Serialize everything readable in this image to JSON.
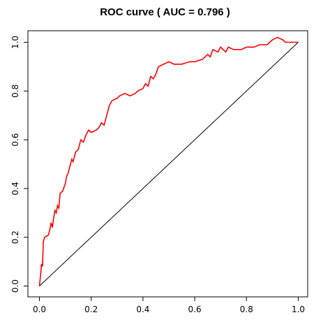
{
  "chart_data": {
    "type": "line",
    "title": "ROC curve ( AUC =  0.796 )",
    "xlabel": "",
    "ylabel": "",
    "xlim": [
      0.0,
      1.0
    ],
    "ylim": [
      0.0,
      1.0
    ],
    "grid": false,
    "legend": "none",
    "x_ticks": [
      "0.0",
      "0.2",
      "0.4",
      "0.6",
      "0.8",
      "1.0"
    ],
    "y_ticks": [
      "0.0",
      "0.2",
      "0.4",
      "0.6",
      "0.8",
      "1.0"
    ],
    "series": [
      {
        "color": "#ff0000",
        "points": [
          [
            0.0,
            0.0
          ],
          [
            0.005,
            0.05
          ],
          [
            0.008,
            0.09
          ],
          [
            0.012,
            0.08
          ],
          [
            0.015,
            0.18
          ],
          [
            0.02,
            0.2
          ],
          [
            0.035,
            0.21
          ],
          [
            0.04,
            0.23
          ],
          [
            0.045,
            0.26
          ],
          [
            0.05,
            0.24
          ],
          [
            0.055,
            0.28
          ],
          [
            0.06,
            0.31
          ],
          [
            0.065,
            0.3
          ],
          [
            0.07,
            0.33
          ],
          [
            0.075,
            0.32
          ],
          [
            0.08,
            0.38
          ],
          [
            0.09,
            0.39
          ],
          [
            0.1,
            0.42
          ],
          [
            0.105,
            0.45
          ],
          [
            0.11,
            0.46
          ],
          [
            0.12,
            0.5
          ],
          [
            0.125,
            0.52
          ],
          [
            0.13,
            0.51
          ],
          [
            0.14,
            0.55
          ],
          [
            0.15,
            0.56
          ],
          [
            0.16,
            0.6
          ],
          [
            0.17,
            0.59
          ],
          [
            0.18,
            0.62
          ],
          [
            0.19,
            0.64
          ],
          [
            0.2,
            0.63
          ],
          [
            0.22,
            0.64
          ],
          [
            0.23,
            0.65
          ],
          [
            0.24,
            0.67
          ],
          [
            0.25,
            0.66
          ],
          [
            0.26,
            0.7
          ],
          [
            0.27,
            0.74
          ],
          [
            0.28,
            0.76
          ],
          [
            0.3,
            0.77
          ],
          [
            0.31,
            0.78
          ],
          [
            0.33,
            0.79
          ],
          [
            0.35,
            0.78
          ],
          [
            0.37,
            0.79
          ],
          [
            0.38,
            0.8
          ],
          [
            0.4,
            0.81
          ],
          [
            0.41,
            0.83
          ],
          [
            0.42,
            0.82
          ],
          [
            0.43,
            0.86
          ],
          [
            0.44,
            0.85
          ],
          [
            0.45,
            0.87
          ],
          [
            0.46,
            0.9
          ],
          [
            0.48,
            0.91
          ],
          [
            0.5,
            0.92
          ],
          [
            0.52,
            0.91
          ],
          [
            0.55,
            0.91
          ],
          [
            0.58,
            0.92
          ],
          [
            0.6,
            0.92
          ],
          [
            0.63,
            0.93
          ],
          [
            0.65,
            0.95
          ],
          [
            0.66,
            0.94
          ],
          [
            0.67,
            0.97
          ],
          [
            0.69,
            0.96
          ],
          [
            0.7,
            0.98
          ],
          [
            0.72,
            0.96
          ],
          [
            0.73,
            0.98
          ],
          [
            0.75,
            0.97
          ],
          [
            0.78,
            0.97
          ],
          [
            0.8,
            0.98
          ],
          [
            0.83,
            0.98
          ],
          [
            0.85,
            0.99
          ],
          [
            0.88,
            0.99
          ],
          [
            0.89,
            1.0
          ],
          [
            0.9,
            1.01
          ],
          [
            0.92,
            1.02
          ],
          [
            0.94,
            1.01
          ],
          [
            0.95,
            1.0
          ],
          [
            0.97,
            1.0
          ],
          [
            0.98,
            1.0
          ],
          [
            1.0,
            1.0
          ]
        ]
      },
      {
        "color": "#000000",
        "points": [
          [
            0.0,
            0.0
          ],
          [
            1.0,
            1.0
          ]
        ]
      }
    ]
  }
}
